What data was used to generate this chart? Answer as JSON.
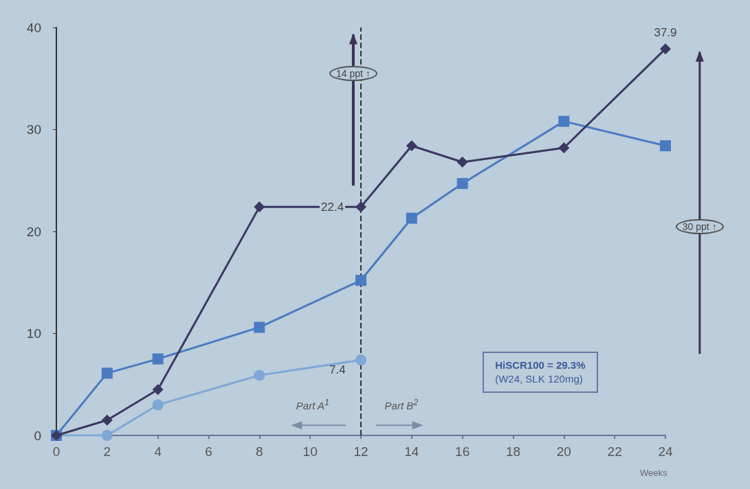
{
  "chart_data": {
    "type": "line",
    "xlabel": "Weeks",
    "xlim": [
      0,
      24
    ],
    "xticks": [
      0,
      2,
      4,
      6,
      8,
      10,
      12,
      14,
      16,
      18,
      20,
      22,
      24
    ],
    "ylim": [
      0,
      40
    ],
    "yticks": [
      0,
      10,
      20,
      30,
      40
    ],
    "grid": false,
    "series": [
      {
        "color": "#3b3961",
        "marker": "diamond",
        "x": [
          0,
          2,
          4,
          8,
          12,
          14,
          16,
          20,
          24
        ],
        "values": [
          0,
          1.5,
          4.5,
          22.4,
          22.4,
          28.4,
          26.8,
          28.2,
          37.9
        ],
        "value_labels": [
          null,
          null,
          null,
          null,
          "22.4",
          null,
          null,
          null,
          "37.9"
        ]
      },
      {
        "color": "#4a7bc2",
        "marker": "square",
        "x": [
          0,
          2,
          4,
          8,
          12,
          14,
          16,
          20,
          24
        ],
        "values": [
          0,
          6.1,
          7.5,
          10.6,
          15.2,
          21.3,
          24.7,
          30.8,
          28.4
        ]
      },
      {
        "color": "#7ea8d8",
        "marker": "circle",
        "x": [
          0,
          2,
          4,
          8,
          12
        ],
        "values": [
          0,
          0,
          3.0,
          5.9,
          7.4
        ],
        "value_labels": [
          null,
          null,
          null,
          null,
          "7.4"
        ]
      }
    ],
    "ref_lines": [
      {
        "axis": "x",
        "value": 12,
        "color": "#333333",
        "line_style": "dashed"
      }
    ],
    "annotations": [
      "14 ppt ↑",
      "30 ppt ↑",
      "Part A$^{1}$",
      "Part B$^{2}$",
      "HiSCR100 = 29.3%",
      "(W24, SLK 120mg)"
    ]
  }
}
